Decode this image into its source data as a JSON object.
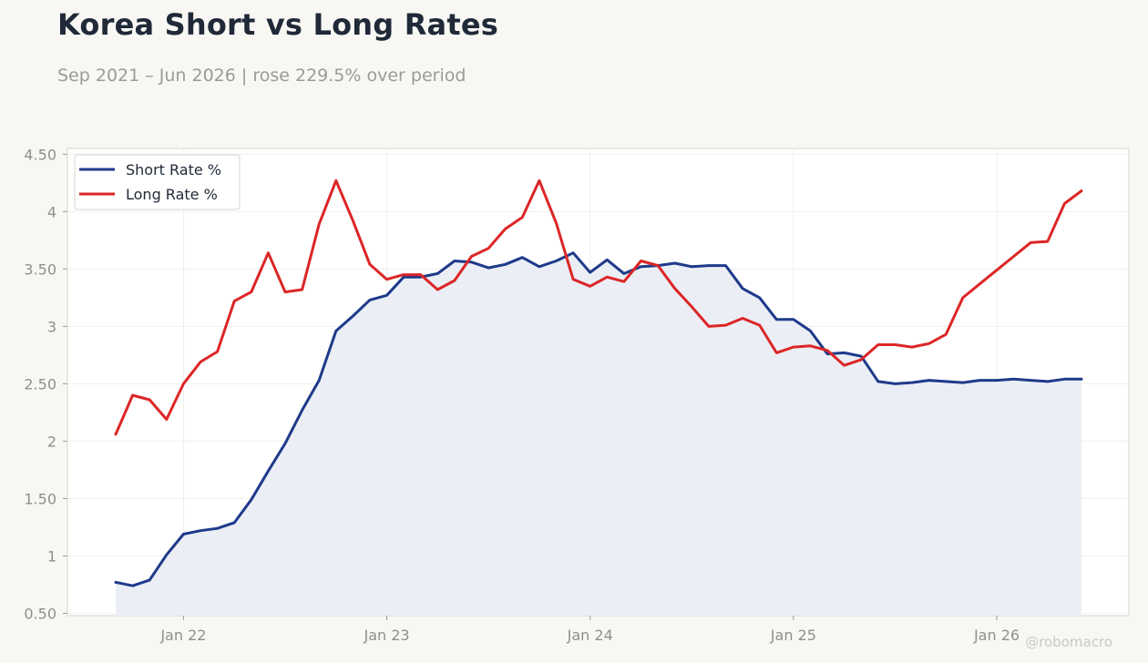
{
  "title": "Korea Short vs Long Rates",
  "subtitle": "Sep 2021 – Jun 2026 | rose 229.5% over period",
  "watermark": "@robomacro",
  "colors": {
    "background": "#f8f7f4",
    "plot_background": "#ffffff",
    "short_rate": "#1e3a8a",
    "long_rate": "#dc2626",
    "short_fill": "#eceef6"
  },
  "chart_data": {
    "type": "line",
    "x_start": "2021-09",
    "x_end": "2026-06",
    "x_tick_labels": [
      "Jan 22",
      "Jan 23",
      "Jan 24",
      "Jan 25",
      "Jan 26"
    ],
    "x_tick_dates": [
      "2022-01",
      "2023-01",
      "2024-01",
      "2025-01",
      "2026-01"
    ],
    "y_tick_labels": [
      "0.50",
      "1",
      "1.50",
      "2",
      "2.50",
      "3",
      "3.50",
      "4",
      "4.50"
    ],
    "y_tick_values": [
      0.5,
      1,
      1.5,
      2,
      2.5,
      3,
      3.5,
      4,
      4.5
    ],
    "ylim": [
      0.48,
      4.55
    ],
    "grid": true,
    "legend_position": "top-left",
    "series": [
      {
        "name": "Short Rate %",
        "fill": true,
        "points": [
          [
            "2021-09",
            0.77
          ],
          [
            "2021-10",
            0.74
          ],
          [
            "2021-11",
            0.79
          ],
          [
            "2021-12",
            1.01
          ],
          [
            "2022-01",
            1.19
          ],
          [
            "2022-02",
            1.22
          ],
          [
            "2022-03",
            1.24
          ],
          [
            "2022-04",
            1.29
          ],
          [
            "2022-05",
            1.49
          ],
          [
            "2022-06",
            1.74
          ],
          [
            "2022-07",
            1.98
          ],
          [
            "2022-08",
            2.27
          ],
          [
            "2022-09",
            2.53
          ],
          [
            "2022-10",
            2.96
          ],
          [
            "2022-11",
            3.09
          ],
          [
            "2022-12",
            3.23
          ],
          [
            "2023-01",
            3.27
          ],
          [
            "2023-02",
            3.43
          ],
          [
            "2023-03",
            3.43
          ],
          [
            "2023-04",
            3.46
          ],
          [
            "2023-05",
            3.57
          ],
          [
            "2023-06",
            3.56
          ],
          [
            "2023-07",
            3.51
          ],
          [
            "2023-08",
            3.54
          ],
          [
            "2023-09",
            3.6
          ],
          [
            "2023-10",
            3.52
          ],
          [
            "2023-11",
            3.57
          ],
          [
            "2023-12",
            3.64
          ],
          [
            "2024-01",
            3.47
          ],
          [
            "2024-02",
            3.58
          ],
          [
            "2024-03",
            3.46
          ],
          [
            "2024-04",
            3.52
          ],
          [
            "2024-05",
            3.53
          ],
          [
            "2024-06",
            3.55
          ],
          [
            "2024-07",
            3.52
          ],
          [
            "2024-08",
            3.53
          ],
          [
            "2024-09",
            3.53
          ],
          [
            "2024-10",
            3.33
          ],
          [
            "2024-11",
            3.25
          ],
          [
            "2024-12",
            3.06
          ],
          [
            "2025-01",
            3.06
          ],
          [
            "2025-02",
            2.96
          ],
          [
            "2025-03",
            2.76
          ],
          [
            "2025-04",
            2.77
          ],
          [
            "2025-05",
            2.74
          ],
          [
            "2025-06",
            2.52
          ],
          [
            "2025-07",
            2.5
          ],
          [
            "2025-08",
            2.51
          ],
          [
            "2025-09",
            2.53
          ],
          [
            "2025-10",
            2.52
          ],
          [
            "2025-11",
            2.51
          ],
          [
            "2025-12",
            2.53
          ],
          [
            "2026-01",
            2.53
          ],
          [
            "2026-02",
            2.54
          ],
          [
            "2026-03",
            2.53
          ],
          [
            "2026-04",
            2.52
          ],
          [
            "2026-05",
            2.54
          ],
          [
            "2026-06",
            2.54
          ]
        ]
      },
      {
        "name": "Long Rate %",
        "fill": false,
        "points": [
          [
            "2021-09",
            2.06
          ],
          [
            "2021-10",
            2.4
          ],
          [
            "2021-11",
            2.36
          ],
          [
            "2021-12",
            2.19
          ],
          [
            "2022-01",
            2.5
          ],
          [
            "2022-02",
            2.69
          ],
          [
            "2022-03",
            2.78
          ],
          [
            "2022-04",
            3.22
          ],
          [
            "2022-05",
            3.3
          ],
          [
            "2022-06",
            3.64
          ],
          [
            "2022-07",
            3.3
          ],
          [
            "2022-08",
            3.32
          ],
          [
            "2022-09",
            3.89
          ],
          [
            "2022-10",
            4.27
          ],
          [
            "2022-11",
            3.92
          ],
          [
            "2022-12",
            3.54
          ],
          [
            "2023-01",
            3.41
          ],
          [
            "2023-02",
            3.45
          ],
          [
            "2023-03",
            3.45
          ],
          [
            "2023-04",
            3.32
          ],
          [
            "2023-05",
            3.4
          ],
          [
            "2023-06",
            3.61
          ],
          [
            "2023-07",
            3.68
          ],
          [
            "2023-08",
            3.85
          ],
          [
            "2023-09",
            3.95
          ],
          [
            "2023-10",
            4.27
          ],
          [
            "2023-11",
            3.9
          ],
          [
            "2023-12",
            3.41
          ],
          [
            "2024-01",
            3.35
          ],
          [
            "2024-02",
            3.43
          ],
          [
            "2024-03",
            3.39
          ],
          [
            "2024-04",
            3.57
          ],
          [
            "2024-05",
            3.53
          ],
          [
            "2024-06",
            3.33
          ],
          [
            "2024-07",
            3.17
          ],
          [
            "2024-08",
            3.0
          ],
          [
            "2024-09",
            3.01
          ],
          [
            "2024-10",
            3.07
          ],
          [
            "2024-11",
            3.01
          ],
          [
            "2024-12",
            2.77
          ],
          [
            "2025-01",
            2.82
          ],
          [
            "2025-02",
            2.83
          ],
          [
            "2025-03",
            2.79
          ],
          [
            "2025-04",
            2.66
          ],
          [
            "2025-05",
            2.71
          ],
          [
            "2025-06",
            2.84
          ],
          [
            "2025-07",
            2.84
          ],
          [
            "2025-08",
            2.82
          ],
          [
            "2025-09",
            2.85
          ],
          [
            "2025-10",
            2.93
          ],
          [
            "2025-11",
            3.25
          ],
          [
            "2025-12",
            3.37
          ],
          [
            "2026-01",
            3.49
          ],
          [
            "2026-02",
            3.61
          ],
          [
            "2026-03",
            3.73
          ],
          [
            "2026-04",
            3.74
          ],
          [
            "2026-05",
            4.07
          ],
          [
            "2026-06",
            4.18
          ]
        ]
      }
    ]
  }
}
